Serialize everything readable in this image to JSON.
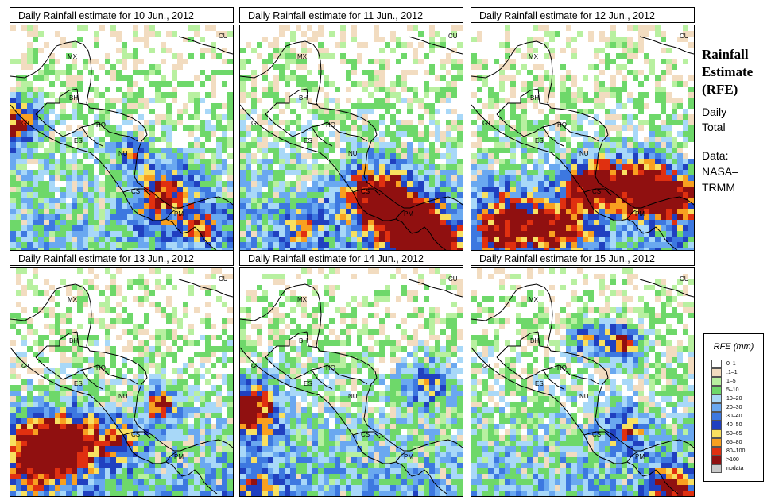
{
  "panels": [
    {
      "title": "Daily Rainfall estimate for  10 Jun., 2012",
      "seed": 11,
      "hot": [
        [
          0,
          120,
          22,
          1.6
        ],
        [
          190,
          210,
          28,
          1.2
        ],
        [
          240,
          250,
          18,
          0.9
        ],
        [
          150,
          155,
          14,
          0.9
        ]
      ]
    },
    {
      "title": "Daily Rainfall estimate for  11 Jun., 2012",
      "seed": 23,
      "hot": [
        [
          170,
          215,
          30,
          1.9
        ],
        [
          215,
          245,
          26,
          1.6
        ],
        [
          240,
          280,
          28,
          2.0
        ],
        [
          75,
          250,
          20,
          0.8
        ]
      ]
    },
    {
      "title": "Daily Rainfall estimate for  12 Jun., 2012",
      "seed": 37,
      "hot": [
        [
          150,
          195,
          22,
          1.9
        ],
        [
          210,
          200,
          26,
          1.9
        ],
        [
          255,
          215,
          22,
          1.5
        ],
        [
          40,
          245,
          30,
          1.5
        ],
        [
          110,
          248,
          28,
          1.3
        ]
      ]
    },
    {
      "title": "Daily Rainfall estimate for  13 Jun., 2012",
      "seed": 41,
      "hot": [
        [
          30,
          230,
          30,
          1.9
        ],
        [
          75,
          215,
          26,
          1.6
        ],
        [
          185,
          170,
          14,
          1.6
        ],
        [
          135,
          215,
          20,
          1.0
        ]
      ]
    },
    {
      "title": "Daily Rainfall estimate for  14 Jun., 2012",
      "seed": 53,
      "hot": [
        [
          10,
          175,
          26,
          1.9
        ],
        [
          230,
          140,
          22,
          0.9
        ],
        [
          20,
          270,
          20,
          0.9
        ]
      ]
    },
    {
      "title": "Daily Rainfall estimate for  15 Jun., 2012",
      "seed": 67,
      "hot": [
        [
          185,
          90,
          18,
          1.6
        ],
        [
          140,
          85,
          16,
          1.0
        ],
        [
          190,
          200,
          20,
          1.0
        ],
        [
          250,
          270,
          18,
          1.5
        ]
      ]
    }
  ],
  "map_labels": [
    {
      "text": "MX"
    },
    {
      "text": "BH"
    },
    {
      "text": "GT"
    },
    {
      "text": "HO"
    },
    {
      "text": "ES"
    },
    {
      "text": "NU"
    },
    {
      "text": "CS"
    },
    {
      "text": "PM"
    },
    {
      "text": "CU"
    }
  ],
  "side": {
    "title_line1": "Rainfall",
    "title_line2": "Estimate",
    "title_line3": "(RFE)",
    "period_line1": "Daily",
    "period_line2": "Total",
    "source_line1": "Data:",
    "source_line2": "NASA–",
    "source_line3": "TRMM"
  },
  "legend": {
    "title": "RFE (mm)",
    "items": [
      {
        "label": "0–1",
        "color": "#ffffff"
      },
      {
        "label": ".1–1",
        "color": "#f2dcc0"
      },
      {
        "label": "1–5",
        "color": "#b8f0a0"
      },
      {
        "label": "5–10",
        "color": "#6ed86a"
      },
      {
        "label": "10–20",
        "color": "#a8d8f8"
      },
      {
        "label": "20–30",
        "color": "#6aa8f0"
      },
      {
        "label": "30–40",
        "color": "#3d78e0"
      },
      {
        "label": "40–50",
        "color": "#2040c0"
      },
      {
        "label": "50–65",
        "color": "#f8e060"
      },
      {
        "label": "65–80",
        "color": "#f8a020"
      },
      {
        "label": "80–100",
        "color": "#e03010"
      },
      {
        "label": ">100",
        "color": "#901010"
      },
      {
        "label": "nodata",
        "color": "#c8c8c8"
      }
    ]
  }
}
